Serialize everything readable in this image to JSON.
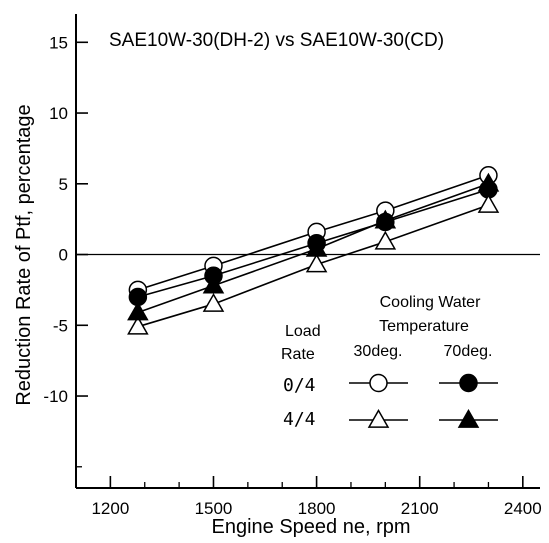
{
  "chart_data": {
    "type": "line",
    "title": "SAE10W-30(DH-2) vs SAE10W-30(CD)",
    "xlabel": "Engine Speed ne, rpm",
    "ylabel": "Reduction Rate of Ptf, percentage",
    "xlim": [
      1100,
      2450
    ],
    "ylim": [
      -16.5,
      17
    ],
    "x_ticks": [
      "1200",
      "1500",
      "1800",
      "2100",
      "2400"
    ],
    "y_ticks": [
      "15",
      "10",
      "5",
      "0",
      "-5",
      "-10"
    ],
    "x_tick_values": [
      1200,
      1500,
      1800,
      2100,
      2400
    ],
    "y_tick_values": [
      15,
      10,
      5,
      0,
      -5,
      -10
    ],
    "grid": false,
    "zero_line": true,
    "x": [
      1280,
      1500,
      1800,
      2000,
      2300
    ],
    "series": [
      {
        "name": "0/4 30deg.",
        "load_rate": "0/4",
        "temperature": "30deg.",
        "marker": "circle",
        "filled": false,
        "values": [
          -2.5,
          -0.8,
          1.6,
          3.1,
          5.6
        ]
      },
      {
        "name": "0/4 70deg.",
        "load_rate": "0/4",
        "temperature": "70deg.",
        "marker": "circle",
        "filled": true,
        "values": [
          -3.0,
          -1.5,
          0.8,
          2.3,
          4.6
        ]
      },
      {
        "name": "4/4 30deg.",
        "load_rate": "4/4",
        "temperature": "30deg.",
        "marker": "triangle",
        "filled": false,
        "values": [
          -5.1,
          -3.5,
          -0.7,
          0.9,
          3.5
        ]
      },
      {
        "name": "4/4 70deg.",
        "load_rate": "4/4",
        "temperature": "70deg.",
        "marker": "triangle",
        "filled": true,
        "values": [
          -4.1,
          -2.2,
          0.4,
          2.4,
          5.0
        ]
      }
    ],
    "legend": {
      "header_line1": "Cooling Water",
      "header_line2": "Temperature",
      "load_label_line1": "Load",
      "load_label_line2": "Rate",
      "col1": "30deg.",
      "col2": "70deg.",
      "row1": "0/4",
      "row2": "4/4",
      "placement": "bottom-right"
    }
  }
}
